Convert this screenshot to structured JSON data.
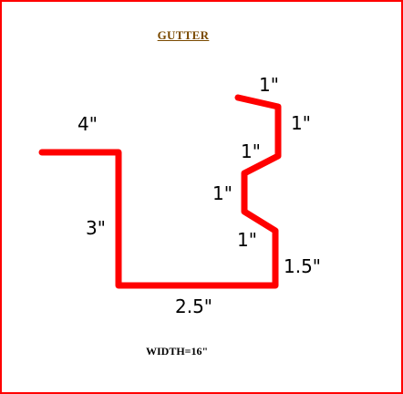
{
  "title": "GUTTER",
  "width_note": "WIDTH=16\"",
  "colors": {
    "frame": "#ff0000",
    "profile": "#ff0000",
    "title": "#7a4a00",
    "text": "#000000"
  },
  "dimensions": {
    "top_flange": "4\"",
    "back_height": "3\"",
    "bottom": "2.5\"",
    "front_lower": "1.5\"",
    "lower_bend": "1\"",
    "notch": "1\"",
    "upper_bend": "1\"",
    "front_upper": "1\"",
    "hem": "1\""
  }
}
